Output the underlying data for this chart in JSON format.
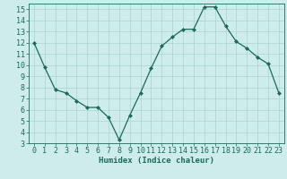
{
  "x": [
    0,
    1,
    2,
    3,
    4,
    5,
    6,
    7,
    8,
    9,
    10,
    11,
    12,
    13,
    14,
    15,
    16,
    17,
    18,
    19,
    20,
    21,
    22,
    23
  ],
  "y": [
    12,
    9.8,
    7.8,
    7.5,
    6.8,
    6.2,
    6.2,
    5.3,
    3.3,
    5.5,
    7.5,
    9.7,
    11.7,
    12.5,
    13.2,
    13.2,
    15.2,
    15.2,
    13.5,
    12.1,
    11.5,
    10.7,
    10.1,
    7.5
  ],
  "line_color": "#1a6b5a",
  "marker": "D",
  "marker_size": 2,
  "bg_color": "#ceecea",
  "grid_color": "#aad4d0",
  "xlabel": "Humidex (Indice chaleur)",
  "ylim": [
    3,
    15.5
  ],
  "xlim": [
    -0.5,
    23.5
  ],
  "yticks": [
    3,
    4,
    5,
    6,
    7,
    8,
    9,
    10,
    11,
    12,
    13,
    14,
    15
  ],
  "xticks": [
    0,
    1,
    2,
    3,
    4,
    5,
    6,
    7,
    8,
    9,
    10,
    11,
    12,
    13,
    14,
    15,
    16,
    17,
    18,
    19,
    20,
    21,
    22,
    23
  ],
  "label_fontsize": 6.5,
  "tick_fontsize": 6.0
}
